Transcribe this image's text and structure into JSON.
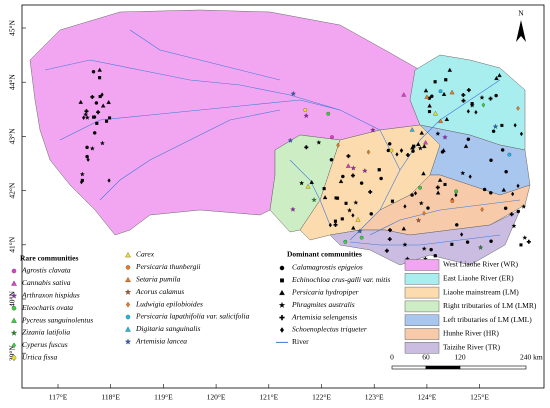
{
  "map": {
    "north": "N",
    "lat_labels": [
      "45°N",
      "44°N",
      "43°N",
      "42°N",
      "41°N",
      "40°N",
      "39°N"
    ],
    "lon_labels": [
      "117°E",
      "118°E",
      "119°E",
      "120°E",
      "121°E",
      "122°E",
      "123°E",
      "124°E",
      "125°E"
    ],
    "rare": {
      "title": "Rare communities",
      "items": [
        "Agrostis clavata",
        "Cannabis sativa",
        "Arthraxon hispidus",
        "Eleocharis ovata",
        "Pycreus sanguinolentus",
        "Zizania latifolia",
        "Cyperus fuscus",
        "Urtica fissa",
        "Carex",
        "Persicaria thunbergii",
        "Setaria pumila",
        "Acorus calamus",
        "Ludwigia epilobioides",
        "Persicaria lapathifolia var. salicifolia",
        "Digitaria sanguinalis",
        "Artemisia lancea"
      ]
    },
    "dominant": {
      "title": "Dominant communities",
      "items": [
        "Calamagrostis epigeios",
        "Echinochloa crus-galli var. mitis",
        "Persicaria hydropiper",
        "Phragmites australis",
        "Artemisia selengensis",
        "Schoenoplectus triqueter"
      ]
    },
    "river": "River",
    "regions": [
      "West Liaohe River (WR)",
      "East Liaohe River (ER)",
      "Liaohe mainstream (LM)",
      "Right tributaries of LM (LMR)",
      "Left tributaries of LM (LML)",
      "Hunhe River (HR)",
      "Taizihe River (TR)"
    ],
    "scale": [
      "0",
      "60",
      "120",
      "240 km"
    ]
  }
}
